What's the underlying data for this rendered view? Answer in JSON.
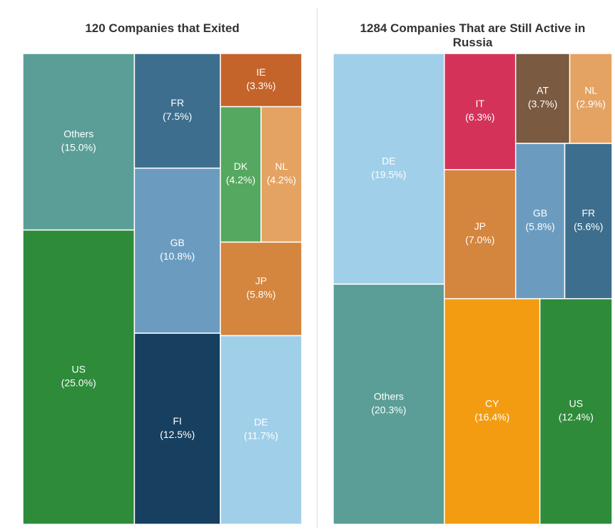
{
  "chart_data": [
    {
      "type": "treemap",
      "title": "120 Companies that Exited",
      "categories": [
        "Others",
        "US",
        "FR",
        "GB",
        "FI",
        "IE",
        "DK",
        "NL",
        "JP",
        "DE"
      ],
      "values": [
        15.0,
        25.0,
        7.5,
        10.8,
        12.5,
        3.3,
        4.2,
        4.2,
        5.8,
        11.7
      ],
      "value_labels": [
        "(15.0%)",
        "(25.0%)",
        "(7.5%)",
        "(10.8%)",
        "(12.5%)",
        "(3.3%)",
        "(4.2%)",
        "(4.2%)",
        "(5.8%)",
        "(11.7%)"
      ],
      "colors": [
        "#5a9e97",
        "#2e8b3a",
        "#3d6e8e",
        "#6b9cc0",
        "#173f5f",
        "#c4632a",
        "#55a860",
        "#e4a362",
        "#d4853e",
        "#a0cfe9"
      ]
    },
    {
      "type": "treemap",
      "title": "1284 Companies That are Still Active in Russia",
      "categories": [
        "DE",
        "Others",
        "IT",
        "JP",
        "AT",
        "NL",
        "GB",
        "FR",
        "CY",
        "US"
      ],
      "values": [
        19.5,
        20.3,
        6.3,
        7.0,
        3.7,
        2.9,
        5.8,
        5.6,
        16.4,
        12.4
      ],
      "value_labels": [
        "(19.5%)",
        "(20.3%)",
        "(6.3%)",
        "(7.0%)",
        "(3.7%)",
        "(2.9%)",
        "(5.8%)",
        "(5.6%)",
        "(16.4%)",
        "(12.4%)"
      ],
      "colors": [
        "#a0cfe9",
        "#5a9e97",
        "#d5325a",
        "#d4853e",
        "#7a5a40",
        "#e4a362",
        "#6b9cc0",
        "#3d6e8e",
        "#f39c12",
        "#2e8b3a"
      ]
    }
  ]
}
